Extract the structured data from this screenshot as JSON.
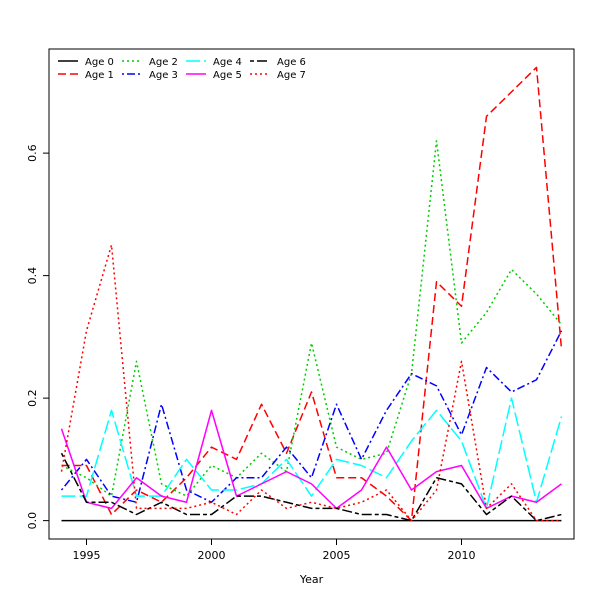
{
  "chart_data": {
    "type": "line",
    "title": "",
    "xlabel": "Year",
    "ylabel": "",
    "xlim": [
      1993.5,
      2014.5
    ],
    "ylim": [
      -0.03,
      0.77
    ],
    "x_ticks": [
      1995,
      2000,
      2005,
      2010
    ],
    "y_ticks": [
      0.0,
      0.2,
      0.4,
      0.6
    ],
    "x_tick_labels": [
      "1995",
      "2000",
      "2005",
      "2010"
    ],
    "y_tick_labels": [
      "0.0",
      "0.2",
      "0.4",
      "0.6"
    ],
    "grid": false,
    "legend_position": "top-left",
    "x": [
      1994,
      1995,
      1996,
      1997,
      1998,
      1999,
      2000,
      2001,
      2002,
      2003,
      2004,
      2005,
      2006,
      2007,
      2008,
      2009,
      2010,
      2011,
      2012,
      2013,
      2014
    ],
    "series": [
      {
        "name": "Age 0",
        "color": "#000000",
        "dash": "solid",
        "values": [
          0,
          0,
          0,
          0,
          0,
          0,
          0,
          0,
          0,
          0,
          0,
          0,
          0,
          0,
          0,
          0,
          0,
          0,
          0,
          0,
          0
        ]
      },
      {
        "name": "Age 1",
        "color": "#ff0000",
        "dash": "dashed",
        "values": [
          0.09,
          0.09,
          0.01,
          0.05,
          0.03,
          0.07,
          0.12,
          0.1,
          0.19,
          0.11,
          0.21,
          0.07,
          0.07,
          0.04,
          0.0,
          0.39,
          0.35,
          0.66,
          0.7,
          0.74,
          0.28
        ]
      },
      {
        "name": "Age 2",
        "color": "#00cd00",
        "dash": "dotted",
        "values": [
          0.09,
          0.07,
          0.04,
          0.26,
          0.06,
          0.04,
          0.09,
          0.07,
          0.11,
          0.08,
          0.29,
          0.12,
          0.1,
          0.11,
          0.24,
          0.62,
          0.29,
          0.34,
          0.41,
          0.37,
          0.32
        ]
      },
      {
        "name": "Age 3",
        "color": "#0000ff",
        "dash": "dashdot",
        "values": [
          0.05,
          0.1,
          0.04,
          0.03,
          0.19,
          0.05,
          0.03,
          0.07,
          0.07,
          0.12,
          0.07,
          0.19,
          0.1,
          0.18,
          0.24,
          0.22,
          0.14,
          0.25,
          0.21,
          0.23,
          0.31
        ]
      },
      {
        "name": "Age 4",
        "color": "#00ffff",
        "dash": "longdash",
        "values": [
          0.04,
          0.04,
          0.18,
          0.04,
          0.04,
          0.1,
          0.05,
          0.05,
          0.06,
          0.1,
          0.04,
          0.1,
          0.09,
          0.07,
          0.13,
          0.18,
          0.13,
          0.02,
          0.2,
          0.03,
          0.17
        ]
      },
      {
        "name": "Age 5",
        "color": "#ff00ff",
        "dash": "solid",
        "values": [
          0.15,
          0.03,
          0.02,
          0.07,
          0.04,
          0.03,
          0.18,
          0.04,
          0.06,
          0.08,
          0.06,
          0.02,
          0.05,
          0.12,
          0.05,
          0.08,
          0.09,
          0.02,
          0.04,
          0.03,
          0.06
        ]
      },
      {
        "name": "Age 6",
        "color": "#000000",
        "dash": "twodash",
        "values": [
          0.11,
          0.03,
          0.03,
          0.01,
          0.03,
          0.01,
          0.01,
          0.04,
          0.04,
          0.03,
          0.02,
          0.02,
          0.01,
          0.01,
          0.0,
          0.07,
          0.06,
          0.01,
          0.04,
          0.0,
          0.01
        ]
      },
      {
        "name": "Age 7",
        "color": "#ff0000",
        "dash": "dotted",
        "values": [
          0.08,
          0.31,
          0.45,
          0.02,
          0.02,
          0.02,
          0.03,
          0.01,
          0.05,
          0.02,
          0.03,
          0.02,
          0.03,
          0.05,
          0.0,
          0.05,
          0.26,
          0.02,
          0.06,
          0.0,
          0.0
        ]
      }
    ]
  }
}
